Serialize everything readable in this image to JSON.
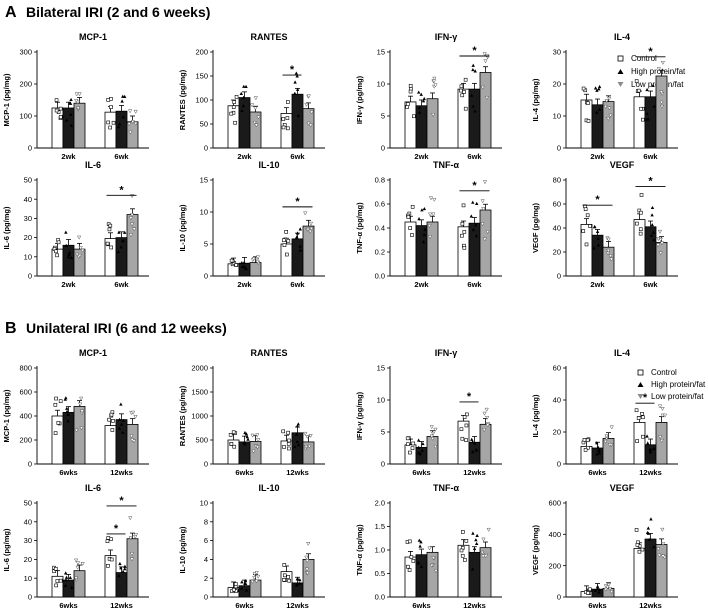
{
  "panels": [
    {
      "letter": "A",
      "title": "Bilateral IRI (2 and 6 weeks)"
    },
    {
      "letter": "B",
      "title": "Unilateral IRI (6 and 12 weeks)"
    }
  ],
  "legend": [
    {
      "name": "Control",
      "fill": "#ffffff",
      "marker": "square"
    },
    {
      "name": "High protein/fat",
      "fill": "#000000",
      "marker": "triangle-up"
    },
    {
      "name": "Low protein/fat",
      "fill": "#8c8c8c",
      "marker": "triangle-down"
    }
  ],
  "colors": {
    "control": "#ffffff",
    "high": "#1a1a1a",
    "low": "#a6a6a6",
    "axis": "#000000"
  },
  "chart_data": [
    {
      "type": "bar",
      "panel": "A",
      "title": "MCP-1",
      "ylabel": "MCP-1 (pg/mg)",
      "categories": [
        "2wk",
        "6wk"
      ],
      "ylim": [
        0,
        300
      ],
      "yticks": [
        0,
        100,
        200,
        300
      ],
      "series": [
        {
          "name": "Control",
          "values": [
            125,
            112
          ]
        },
        {
          "name": "High protein/fat",
          "values": [
            125,
            115
          ]
        },
        {
          "name": "Low protein/fat",
          "values": [
            140,
            82
          ]
        }
      ],
      "significance": []
    },
    {
      "type": "bar",
      "panel": "A",
      "title": "RANTES",
      "ylabel": "RANTES (pg/mg)",
      "categories": [
        "2wk",
        "6wk"
      ],
      "ylim": [
        0,
        200
      ],
      "yticks": [
        0,
        50,
        100,
        150,
        200
      ],
      "series": [
        {
          "name": "Control",
          "values": [
            88,
            72
          ]
        },
        {
          "name": "High protein/fat",
          "values": [
            105,
            112
          ]
        },
        {
          "name": "Low protein/fat",
          "values": [
            75,
            82
          ]
        }
      ],
      "significance": [
        {
          "category": 1,
          "from": 0,
          "to": 1,
          "label": "*"
        }
      ]
    },
    {
      "type": "bar",
      "panel": "A",
      "title": "IFN-γ",
      "ylabel": "IFN-γ (pg/mg)",
      "categories": [
        "2wk",
        "6wk"
      ],
      "ylim": [
        0,
        15
      ],
      "yticks": [
        0,
        5,
        10,
        15
      ],
      "series": [
        {
          "name": "Control",
          "values": [
            7.2,
            9.2
          ]
        },
        {
          "name": "High protein/fat",
          "values": [
            6.6,
            9.2
          ]
        },
        {
          "name": "Low protein/fat",
          "values": [
            7.7,
            11.8
          ]
        }
      ],
      "significance": [
        {
          "category": 1,
          "from": 0,
          "to": 2,
          "label": "*"
        }
      ]
    },
    {
      "type": "bar",
      "panel": "A",
      "title": "IL-4",
      "ylabel": "IL-4 (pg/mg)",
      "categories": [
        "2wk",
        "6wk"
      ],
      "ylim": [
        0,
        30
      ],
      "yticks": [
        0,
        10,
        20,
        30
      ],
      "series": [
        {
          "name": "Control",
          "values": [
            15,
            16
          ]
        },
        {
          "name": "High protein/fat",
          "values": [
            13.5,
            16
          ]
        },
        {
          "name": "Low protein/fat",
          "values": [
            14.5,
            22.5
          ]
        }
      ],
      "significance": [
        {
          "category": 1,
          "from": 0,
          "to": 2,
          "label": "*"
        }
      ]
    },
    {
      "type": "bar",
      "panel": "A",
      "title": "IL-6",
      "ylabel": "IL-6 (pg/mg)",
      "categories": [
        "2wk",
        "6wk"
      ],
      "ylim": [
        0,
        50
      ],
      "yticks": [
        0,
        10,
        20,
        30,
        40,
        50
      ],
      "series": [
        {
          "name": "Control",
          "values": [
            14,
            19.5
          ]
        },
        {
          "name": "High protein/fat",
          "values": [
            16,
            20
          ]
        },
        {
          "name": "Low protein/fat",
          "values": [
            14,
            32
          ]
        }
      ],
      "significance": [
        {
          "category": 1,
          "from": 0,
          "to": 2,
          "label": "*"
        }
      ]
    },
    {
      "type": "bar",
      "panel": "A",
      "title": "IL-10",
      "ylabel": "IL-10 (pg/mg)",
      "categories": [
        "2wk",
        "6wk"
      ],
      "ylim": [
        0,
        15
      ],
      "yticks": [
        0,
        5,
        10,
        15
      ],
      "series": [
        {
          "name": "Control",
          "values": [
            1.9,
            5
          ]
        },
        {
          "name": "High protein/fat",
          "values": [
            2,
            5.8
          ]
        },
        {
          "name": "Low protein/fat",
          "values": [
            2.1,
            7.8
          ]
        }
      ],
      "significance": [
        {
          "category": 1,
          "from": 0,
          "to": 2,
          "label": "*"
        }
      ]
    },
    {
      "type": "bar",
      "panel": "A",
      "title": "TNF-α",
      "ylabel": "TNF-α (pg/mg)",
      "categories": [
        "2wk",
        "6wk"
      ],
      "ylim": [
        0,
        0.8
      ],
      "yticks": [
        0.0,
        0.2,
        0.4,
        0.6,
        0.8
      ],
      "tickdecimals": 1,
      "series": [
        {
          "name": "Control",
          "values": [
            0.45,
            0.41
          ]
        },
        {
          "name": "High protein/fat",
          "values": [
            0.42,
            0.44
          ]
        },
        {
          "name": "Low protein/fat",
          "values": [
            0.45,
            0.55
          ]
        }
      ],
      "significance": [
        {
          "category": 1,
          "from": 0,
          "to": 2,
          "label": "*"
        }
      ]
    },
    {
      "type": "bar",
      "panel": "A",
      "title": "VEGF",
      "ylabel": "VEGF (pg/mg)",
      "categories": [
        "2wk",
        "6wk"
      ],
      "ylim": [
        0,
        80
      ],
      "yticks": [
        0,
        20,
        40,
        60,
        80
      ],
      "series": [
        {
          "name": "Control",
          "values": [
            43,
            47
          ]
        },
        {
          "name": "High protein/fat",
          "values": [
            34,
            41
          ]
        },
        {
          "name": "Low protein/fat",
          "values": [
            24,
            28
          ]
        }
      ],
      "significance": [
        {
          "category": 0,
          "from": 0,
          "to": 2,
          "label": "*"
        },
        {
          "category": 1,
          "from": 0,
          "to": 2,
          "label": "*"
        }
      ]
    },
    {
      "type": "bar",
      "panel": "B",
      "title": "MCP-1",
      "ylabel": "MCP-1 (pg/mg)",
      "categories": [
        "6wks",
        "12wks"
      ],
      "ylim": [
        0,
        800
      ],
      "yticks": [
        0,
        200,
        400,
        600,
        800
      ],
      "series": [
        {
          "name": "Control",
          "values": [
            400,
            320
          ]
        },
        {
          "name": "High protein/fat",
          "values": [
            430,
            370
          ]
        },
        {
          "name": "Low protein/fat",
          "values": [
            480,
            330
          ]
        }
      ],
      "significance": []
    },
    {
      "type": "bar",
      "panel": "B",
      "title": "RANTES",
      "ylabel": "RANTES (pg/mg)",
      "categories": [
        "6wks",
        "12wks"
      ],
      "ylim": [
        0,
        2000
      ],
      "yticks": [
        0,
        500,
        1000,
        1500,
        2000
      ],
      "series": [
        {
          "name": "Control",
          "values": [
            500,
            480
          ]
        },
        {
          "name": "High protein/fat",
          "values": [
            460,
            650
          ]
        },
        {
          "name": "Low protein/fat",
          "values": [
            470,
            460
          ]
        }
      ],
      "significance": []
    },
    {
      "type": "bar",
      "panel": "B",
      "title": "IFN-γ",
      "ylabel": "IFN-γ (pg/mg)",
      "categories": [
        "6wks",
        "12wks"
      ],
      "ylim": [
        0,
        15
      ],
      "yticks": [
        0,
        5,
        10,
        15
      ],
      "series": [
        {
          "name": "Control",
          "values": [
            3,
            6.7
          ]
        },
        {
          "name": "High protein/fat",
          "values": [
            2.6,
            3.4
          ]
        },
        {
          "name": "Low protein/fat",
          "values": [
            4.3,
            6.2
          ]
        }
      ],
      "significance": [
        {
          "category": 1,
          "from": 0,
          "to": 1,
          "label": "*"
        }
      ]
    },
    {
      "type": "bar",
      "panel": "B",
      "title": "IL-4",
      "ylabel": "IL-4 (pg/mg)",
      "categories": [
        "6wks",
        "12wks"
      ],
      "ylim": [
        0,
        60
      ],
      "yticks": [
        0,
        20,
        40,
        60
      ],
      "series": [
        {
          "name": "Control",
          "values": [
            11,
            26
          ]
        },
        {
          "name": "High protein/fat",
          "values": [
            10,
            12
          ]
        },
        {
          "name": "Low protein/fat",
          "values": [
            16,
            26
          ]
        }
      ],
      "significance": [
        {
          "category": 1,
          "from": 0,
          "to": 1,
          "label": "*"
        }
      ]
    },
    {
      "type": "bar",
      "panel": "B",
      "title": "IL-6",
      "ylabel": "IL-6 (pg/mg)",
      "categories": [
        "6wks",
        "12wks"
      ],
      "ylim": [
        0,
        50
      ],
      "yticks": [
        0,
        10,
        20,
        30,
        40,
        50
      ],
      "series": [
        {
          "name": "Control",
          "values": [
            11,
            22
          ]
        },
        {
          "name": "High protein/fat",
          "values": [
            9,
            13
          ]
        },
        {
          "name": "Low protein/fat",
          "values": [
            14,
            31
          ]
        }
      ],
      "significance": [
        {
          "category": 1,
          "from": 0,
          "to": 1,
          "label": "*"
        },
        {
          "category": 1,
          "from": 0,
          "to": 2,
          "label": "*"
        }
      ]
    },
    {
      "type": "bar",
      "panel": "B",
      "title": "IL-10",
      "ylabel": "IL-10 (pg/mg)",
      "categories": [
        "6wks",
        "12wks"
      ],
      "ylim": [
        0,
        10
      ],
      "yticks": [
        0,
        2,
        4,
        6,
        8,
        10
      ],
      "series": [
        {
          "name": "Control",
          "values": [
            1,
            2.7
          ]
        },
        {
          "name": "High protein/fat",
          "values": [
            1.2,
            1.5
          ]
        },
        {
          "name": "Low protein/fat",
          "values": [
            1.8,
            4
          ]
        }
      ],
      "significance": []
    },
    {
      "type": "bar",
      "panel": "B",
      "title": "TNF-α",
      "ylabel": "TNF-α (pg/mg)",
      "categories": [
        "6wks",
        "12wks"
      ],
      "ylim": [
        0,
        2.0
      ],
      "yticks": [
        0.0,
        0.5,
        1.0,
        1.5,
        2.0
      ],
      "tickdecimals": 1,
      "series": [
        {
          "name": "Control",
          "values": [
            0.85,
            1.1
          ]
        },
        {
          "name": "High protein/fat",
          "values": [
            0.9,
            0.95
          ]
        },
        {
          "name": "Low protein/fat",
          "values": [
            0.95,
            1.05
          ]
        }
      ],
      "significance": []
    },
    {
      "type": "bar",
      "panel": "B",
      "title": "VEGF",
      "ylabel": "VEGF (pg/mg)",
      "categories": [
        "6wks",
        "12wks"
      ],
      "ylim": [
        0,
        600
      ],
      "yticks": [
        0,
        200,
        400,
        600
      ],
      "series": [
        {
          "name": "Control",
          "values": [
            35,
            310
          ]
        },
        {
          "name": "High protein/fat",
          "values": [
            50,
            370
          ]
        },
        {
          "name": "Low protein/fat",
          "values": [
            55,
            335
          ]
        }
      ],
      "significance": []
    }
  ]
}
